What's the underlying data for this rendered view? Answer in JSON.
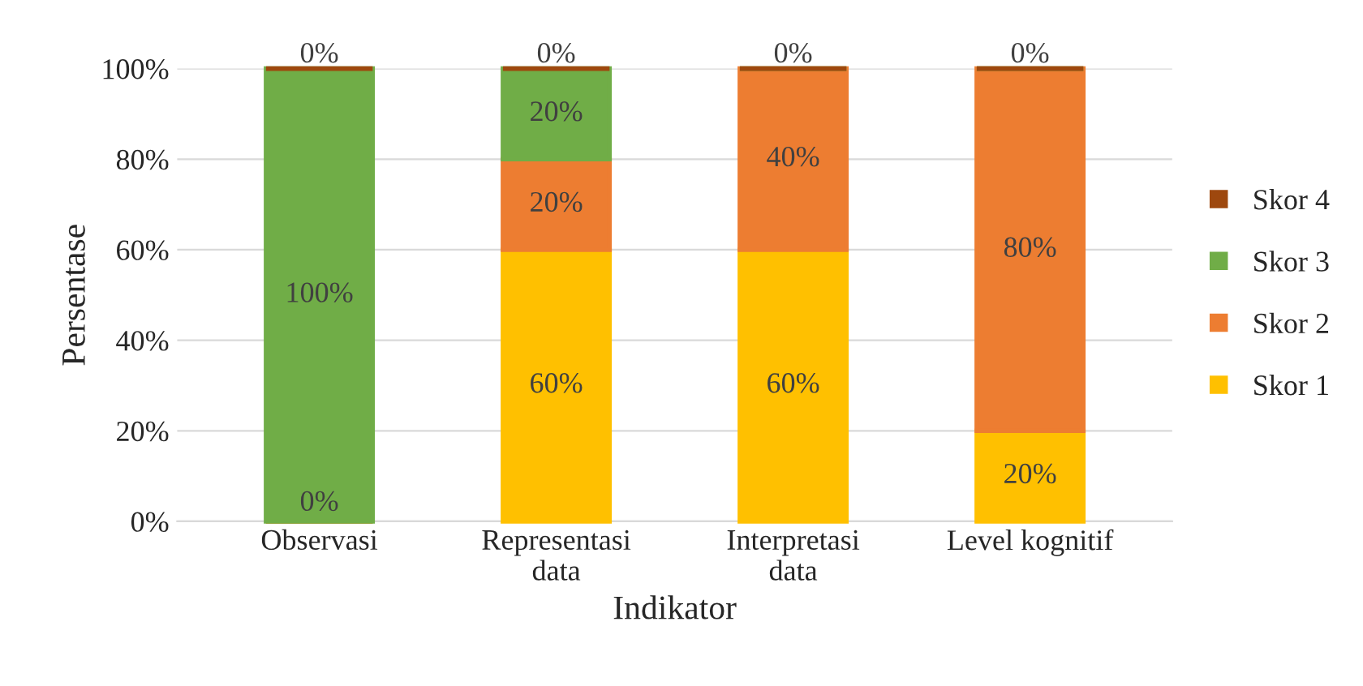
{
  "chart_data": {
    "type": "bar",
    "stacked": true,
    "xlabel": "Indikator",
    "ylabel": "Persentase",
    "categories": [
      "Observasi",
      "Representasi\ndata",
      "Interpretasi\ndata",
      "Level kognitif"
    ],
    "series": [
      {
        "name": "Skor 1",
        "color": "#ffc000",
        "values": [
          0,
          60,
          60,
          20
        ],
        "value_labels": [
          "0%",
          "60%",
          "60%",
          "20%"
        ]
      },
      {
        "name": "Skor 2",
        "color": "#ed7d31",
        "values": [
          0,
          20,
          40,
          80
        ],
        "value_labels": [
          null,
          "20%",
          "40%",
          "80%"
        ]
      },
      {
        "name": "Skor 3",
        "color": "#70ad47",
        "values": [
          100,
          20,
          0,
          0
        ],
        "value_labels": [
          "100%",
          "20%",
          null,
          null
        ]
      },
      {
        "name": "Skor 4",
        "color": "#9e480e",
        "values": [
          0,
          0,
          0,
          0
        ],
        "value_labels": [
          "0%",
          "0%",
          "0%",
          "0%"
        ]
      }
    ],
    "ylim": [
      0,
      100
    ],
    "yticks": [
      {
        "value": 0,
        "label": "0%"
      },
      {
        "value": 20,
        "label": "20%"
      },
      {
        "value": 40,
        "label": "40%"
      },
      {
        "value": 60,
        "label": "60%"
      },
      {
        "value": 80,
        "label": "80%"
      },
      {
        "value": 100,
        "label": "100%"
      }
    ],
    "grid": "y",
    "legend": "right"
  }
}
